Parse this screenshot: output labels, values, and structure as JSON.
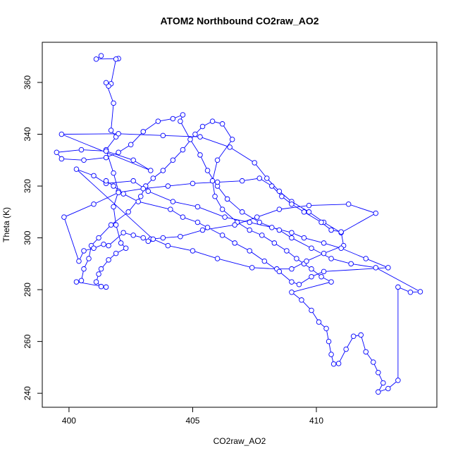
{
  "chart_data": {
    "type": "line",
    "title": "ATOM2 Northbound CO2raw_AO2",
    "xlabel": "CO2raw_AO2",
    "ylabel": "Theta (K)",
    "x": [
      401.3,
      401.1,
      402,
      401.9,
      401.7,
      401.6,
      401.5,
      401.8,
      401.7,
      401.9,
      401.5,
      401.8,
      402.0,
      401.8,
      401.9,
      402.1,
      402.3,
      401.9,
      401.6,
      401.3,
      401.2,
      401.1,
      401.3,
      401.5,
      400.3,
      400.5,
      400.6,
      400.8,
      400.9,
      401.2,
      401.7,
      402.4,
      402.9,
      403.1,
      403.4,
      403.8,
      404.2,
      404.6,
      405.1,
      405.4,
      405.8,
      406.2,
      406.6,
      406.0,
      405.8,
      405.9,
      406.2,
      406.8,
      407.3,
      407.8,
      408.3,
      408.8,
      409.2,
      409.5,
      409.8,
      410.2,
      410.6,
      409.0,
      409.4,
      409.8,
      410.1,
      410.4,
      410.5,
      410.6,
      410.7,
      410.9,
      411.2,
      411.5,
      411.8,
      412.0,
      412.3,
      412.5,
      412.7,
      412.5,
      412.9,
      413.3,
      413.3,
      413.8,
      414.2,
      412.4,
      411.4,
      410.6,
      409.8,
      409.0,
      408.5,
      407.7,
      407.0,
      406.4,
      406.0,
      405.6,
      405.3,
      404.9,
      404.5,
      404.6,
      404.2,
      403.6,
      403.0,
      402.5,
      402.0,
      401.5,
      400.6,
      399.7,
      399.5,
      400.5,
      401.5,
      402.6,
      403.3,
      399.7,
      402.0,
      403.8,
      405.3,
      406.5,
      407.5,
      408.0,
      408.5,
      409.0,
      409.7,
      410.3,
      411.0,
      412.4,
      411.3,
      409.7,
      408.5,
      407.6,
      406.7,
      405.4,
      404.5,
      403.8,
      403.3,
      403.2,
      403.0,
      402.6,
      402.2,
      401.6,
      401.4,
      401.0,
      400.6,
      400.4,
      399.8,
      401.0,
      402.0,
      403.0,
      404.0,
      405.0,
      406.0,
      407.0,
      407.7,
      408.2,
      408.6,
      409.0,
      409.5,
      410.2,
      410.6,
      411.0,
      411.1,
      410.3,
      409.6,
      409.0,
      408.4,
      407.4,
      406.0,
      405.0,
      404.0,
      403.4,
      400.3,
      401.0,
      401.5,
      402.6,
      403.2,
      404.2,
      405.2,
      406.3,
      407.3,
      408.2,
      409.0,
      409.5,
      410.3,
      411.0,
      412.0,
      412.9,
      410.3,
      409.8,
      409.3,
      409.0,
      408.5,
      407.9,
      407.3,
      406.7,
      406.2,
      405.6,
      405.2,
      404.6,
      404.1,
      402.8,
      402.2,
      401.8,
      401.5
    ],
    "series": [
      {
        "color": "#0000ff",
        "values": [
          370.3,
          369,
          369.2,
          369,
          359.5,
          358.6,
          359.9,
          352,
          341.5,
          339,
          334,
          325,
          318,
          312,
          305,
          298,
          296,
          294,
          291.5,
          288,
          286,
          283,
          281.2,
          281,
          283,
          283.5,
          288,
          292,
          297,
          300,
          305,
          310,
          316,
          320,
          323,
          326,
          330,
          334,
          340,
          343,
          345,
          344,
          338,
          330,
          322,
          316,
          311,
          306,
          303,
          301,
          298,
          295,
          292,
          290,
          288,
          285,
          283,
          279,
          276,
          272,
          267.5,
          265,
          260,
          255,
          251.3,
          251.5,
          257,
          262,
          262.5,
          256,
          252,
          248,
          244,
          240.5,
          241.8,
          245,
          281,
          279,
          279.2,
          288.5,
          290,
          292,
          296,
          300,
          303,
          306,
          310,
          315,
          320,
          326,
          332,
          338,
          345,
          347.5,
          346,
          345,
          341,
          336,
          333,
          331,
          330,
          330.5,
          333,
          334,
          333.5,
          330,
          326,
          340,
          340.2,
          339.5,
          339,
          335,
          329,
          323,
          318,
          314,
          310,
          306,
          302,
          309.5,
          313,
          312.5,
          311,
          308,
          305,
          303,
          300.5,
          300,
          299.5,
          298.7,
          300,
          301,
          302,
          297,
          297.5,
          296,
          295,
          291,
          308,
          313,
          317.5,
          319,
          320,
          321,
          321.5,
          322,
          323,
          320,
          316,
          313,
          310,
          306,
          303,
          302.3,
          297,
          294,
          291,
          288,
          288,
          288.5,
          292,
          295,
          297,
          299.5,
          326.5,
          324,
          321,
          322,
          318,
          314,
          312,
          308,
          306,
          304,
          302,
          300,
          298,
          296,
          292,
          288.5,
          287,
          285,
          282,
          283,
          287,
          291,
          295,
          298,
          301,
          304,
          306,
          308,
          311,
          314,
          317,
          320,
          322
        ]
      }
    ],
    "xlim": [
      398.92,
      414.87
    ],
    "ylim": [
      234.6,
      375.5
    ],
    "xticks": [
      400,
      405,
      410
    ],
    "yticks": [
      240,
      260,
      280,
      300,
      320,
      340,
      360
    ]
  }
}
